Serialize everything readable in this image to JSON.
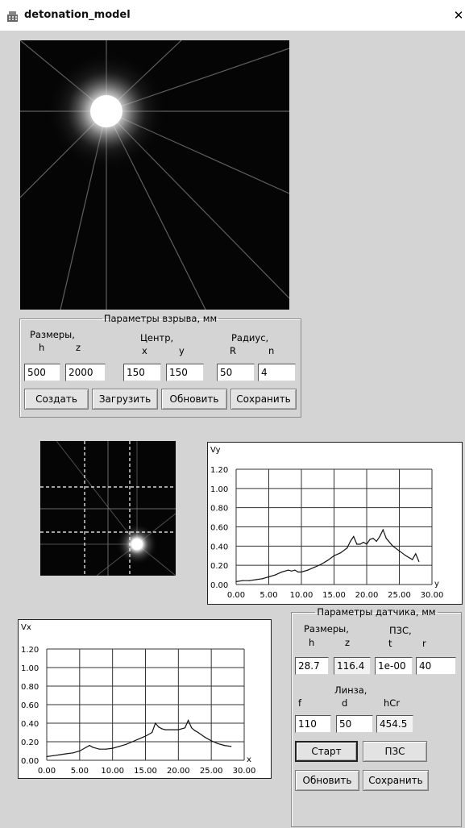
{
  "window": {
    "title": "detonation_model",
    "close_glyph": "✕"
  },
  "explosion_group": {
    "legend": "Параметры взрыва, мм",
    "sizes_label": "Размеры,",
    "h_label": "h",
    "z_label": "z",
    "center_label": "Центр,",
    "x_label": "x",
    "y_label": "y",
    "radius_label": "Радиус,",
    "R_label": "R",
    "n_label": "n",
    "h_value": "500",
    "z_value": "2000",
    "x_value": "150",
    "y_value": "150",
    "R_value": "50",
    "n_value": "4",
    "buttons": {
      "create": "Создать",
      "load": "Загрузить",
      "refresh": "Обновить",
      "save": "Сохранить"
    }
  },
  "sensor_group": {
    "legend": "Параметры датчика, мм",
    "sizes_label": "Размеры,",
    "h_label": "h",
    "z_label": "z",
    "pzs_label": "ПЗС,",
    "t_label": "t",
    "r_label": "r",
    "h_value": "28.7",
    "z_value": "116.4",
    "t_value": "1e-00",
    "r_value": "40",
    "lens_label": "Линза,",
    "f_label": "f",
    "d_label": "d",
    "hcr_label": "hCr",
    "f_value": "110",
    "d_value": "50",
    "hcr_value": "454.5",
    "buttons": {
      "start": "Старт",
      "pzs": "ПЗС",
      "refresh": "Обновить",
      "save": "Сохранить"
    }
  },
  "chart_data": [
    {
      "type": "line",
      "title": "",
      "ylabel": "Vy",
      "xlabel": "y",
      "xlim": [
        0,
        30
      ],
      "ylim": [
        0,
        1.2
      ],
      "xticks": [
        "0.00",
        "5.00",
        "10.00",
        "15.00",
        "20.00",
        "25.00",
        "30.00"
      ],
      "yticks": [
        "0.00",
        "0.20",
        "0.40",
        "0.60",
        "0.80",
        "1.00",
        "1.20"
      ],
      "grid": true,
      "x": [
        0,
        1,
        2,
        3,
        4,
        5,
        6,
        7,
        8,
        8.5,
        9,
        9.5,
        10,
        11,
        12,
        13,
        14,
        15,
        16,
        17,
        17.5,
        18,
        18.5,
        19,
        19.5,
        20,
        20.5,
        21,
        21.5,
        22,
        22.5,
        23,
        24,
        25,
        26,
        27,
        27.5,
        28
      ],
      "y": [
        0.03,
        0.04,
        0.04,
        0.05,
        0.06,
        0.08,
        0.1,
        0.13,
        0.15,
        0.14,
        0.15,
        0.13,
        0.13,
        0.15,
        0.18,
        0.21,
        0.25,
        0.3,
        0.33,
        0.38,
        0.45,
        0.5,
        0.42,
        0.42,
        0.44,
        0.42,
        0.47,
        0.48,
        0.45,
        0.5,
        0.57,
        0.48,
        0.4,
        0.35,
        0.3,
        0.26,
        0.32,
        0.24
      ]
    },
    {
      "type": "line",
      "title": "",
      "ylabel": "Vx",
      "xlabel": "x",
      "xlim": [
        0,
        30
      ],
      "ylim": [
        0,
        1.2
      ],
      "xticks": [
        "0.00",
        "5.00",
        "10.00",
        "15.00",
        "20.00",
        "25.00",
        "30.00"
      ],
      "yticks": [
        "0.00",
        "0.20",
        "0.40",
        "0.60",
        "0.80",
        "1.00",
        "1.20"
      ],
      "grid": true,
      "x": [
        0,
        1,
        2,
        3,
        4,
        5,
        6,
        6.5,
        7,
        8,
        9,
        10,
        11,
        12,
        13,
        14,
        15,
        16,
        16.5,
        17,
        17.5,
        18,
        19,
        20,
        21,
        21.5,
        22,
        22.5,
        23,
        24,
        25,
        26,
        27,
        28
      ],
      "y": [
        0.04,
        0.05,
        0.06,
        0.07,
        0.08,
        0.1,
        0.14,
        0.16,
        0.14,
        0.12,
        0.12,
        0.13,
        0.15,
        0.17,
        0.2,
        0.23,
        0.26,
        0.3,
        0.4,
        0.36,
        0.34,
        0.33,
        0.33,
        0.33,
        0.35,
        0.43,
        0.35,
        0.32,
        0.3,
        0.25,
        0.21,
        0.18,
        0.16,
        0.15
      ]
    }
  ]
}
